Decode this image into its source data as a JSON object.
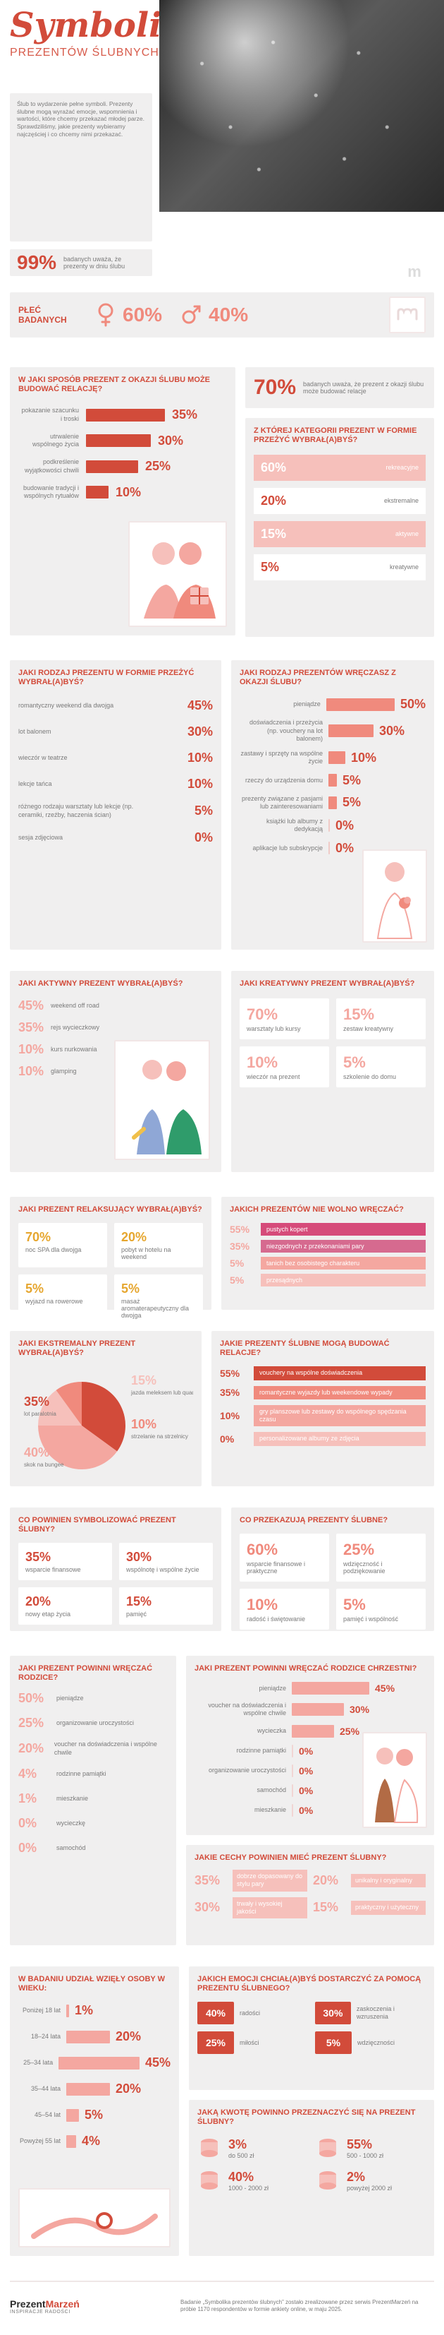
{
  "header": {
    "title_script": "Symbolika",
    "title_caps": "PREZENTÓW ŚLUBNYCH",
    "intro": "Ślub to wydarzenie pełne symboli. Prezenty ślubne mogą wyrażać emocje, wspomnienia i wartości, które chcemy przekazać młodej parze. Sprawdziliśmy, jakie prezenty wybieramy najczęściej i co chcemy nimi przekazać.",
    "stat_pct": "99%",
    "stat_text": "badanych uważa, że prezenty w dniu ślubu",
    "logo_letter": "m"
  },
  "gender": {
    "label": "PŁEĆ BADANYCH",
    "female_pct": "60%",
    "male_pct": "40%"
  },
  "section_relation": {
    "title": "W JAKI SPOSÓB PREZENT Z OKAZJI ŚLUBU MOŻE BUDOWAĆ RELACJĘ?",
    "items": [
      {
        "label": "pokazanie szacunku i troski",
        "pct": "35%"
      },
      {
        "label": "utrwalenie wspólnego życia",
        "pct": "30%"
      },
      {
        "label": "podkreślenie wyjątkowości chwili",
        "pct": "25%"
      },
      {
        "label": "budowanie tradycji i wspólnych rytuałów",
        "pct": "10%"
      }
    ],
    "side_pct": "70%",
    "side_text": "badanych uważa, że prezent z okazji ślubu może budować relacje",
    "category_title": "Z KTÓREJ KATEGORII PREZENT W FORMIE PRZEŻYĆ WYBRAŁ(A)BYŚ?",
    "categories": [
      {
        "pct": "60%",
        "label": "rekreacyjne"
      },
      {
        "pct": "20%",
        "label": "ekstremalne"
      },
      {
        "pct": "15%",
        "label": "aktywne"
      },
      {
        "pct": "5%",
        "label": "kreatywne"
      }
    ]
  },
  "section_experiences": {
    "left_title": "JAKI RODZAJ PREZENTU W FORMIE PRZEŻYĆ WYBRAŁ(A)BYŚ?",
    "left_items": [
      {
        "label": "romantyczny weekend dla dwojga",
        "pct": "45%"
      },
      {
        "label": "lot balonem",
        "pct": "30%"
      },
      {
        "label": "wieczór w teatrze",
        "pct": "10%"
      },
      {
        "label": "lekcje tańca",
        "pct": "10%"
      },
      {
        "label": "różnego rodzaju warsztaty lub lekcje (np. ceramiki, rzeźby, haczenia ścian)",
        "pct": "5%"
      },
      {
        "label": "sesja zdjęciowa",
        "pct": "0%"
      }
    ],
    "right_title": "JAKI RODZAJ PREZENTÓW WRĘCZASZ Z OKAZJI ŚLUBU?",
    "right_items": [
      {
        "label": "pieniądze",
        "pct": "50%"
      },
      {
        "label": "doświadczenia i przeżycia (np. vouchery na lot balonem)",
        "pct": "30%"
      },
      {
        "label": "zastawy i sprzęty na wspólne życie",
        "pct": "10%"
      },
      {
        "label": "rzeczy do urządzenia domu",
        "pct": "5%"
      },
      {
        "label": "prezenty związane z pasjami lub zainteresowaniami",
        "pct": "5%"
      },
      {
        "label": "książki lub albumy z dedykacją",
        "pct": "0%"
      },
      {
        "label": "aplikacje lub subskrypcje",
        "pct": "0%"
      }
    ]
  },
  "section_active_creative": {
    "active_title": "JAKI AKTYWNY PREZENT WYBRAŁ(A)BYŚ?",
    "active_items": [
      {
        "pct": "45%",
        "label": "weekend off road"
      },
      {
        "pct": "35%",
        "label": "rejs wycieczkowy"
      },
      {
        "pct": "10%",
        "label": "kurs nurkowania"
      },
      {
        "pct": "10%",
        "label": "glamping"
      }
    ],
    "creative_title": "JAKI KREATYWNY PREZENT WYBRAŁ(A)BYŚ?",
    "creative_grid": [
      {
        "pct": "70%",
        "label": "warsztaty lub kursy"
      },
      {
        "pct": "15%",
        "label": "zestaw kreatywny"
      },
      {
        "pct": "10%",
        "label": "wieczór na prezent"
      },
      {
        "pct": "5%",
        "label": "szkolenie do domu"
      }
    ]
  },
  "section_relax_cant_give": {
    "relax_title": "JAKI PREZENT RELAKSUJĄCY WYBRAŁ(A)BYŚ?",
    "relax_grid": [
      {
        "pct": "70%",
        "label": "noc SPA dla dwojga"
      },
      {
        "pct": "20%",
        "label": "pobyt w hotelu na weekend"
      },
      {
        "pct": "5%",
        "label": "wyjazd na rowerowe"
      },
      {
        "pct": "5%",
        "label": "masaż aromaterapeutyczny dla dwojga"
      }
    ],
    "cant_title": "JAKICH PREZENTÓW NIE WOLNO WRĘCZAĆ?",
    "cant_items": [
      {
        "pct": "55%",
        "label": "pustych kopert"
      },
      {
        "pct": "35%",
        "label": "niezgodnych z przekonaniami pary"
      },
      {
        "pct": "5%",
        "label": "tanich bez osobistego charakteru"
      },
      {
        "pct": "5%",
        "label": "przesądnych"
      }
    ]
  },
  "section_extreme_build": {
    "extreme_title": "JAKI EKSTREMALNY PREZENT WYBRAŁ(A)BYŚ?",
    "pie": {
      "slices": [
        {
          "name": "lot paralotnia",
          "pct": 35
        },
        {
          "name": "skok na bungee",
          "pct": 40
        },
        {
          "name": "jazda meleksem lub quadem",
          "pct": 15
        },
        {
          "name": "strzelanie na strzelnicy",
          "pct": 10
        }
      ],
      "colors": [
        "#d24b3a",
        "#f4a7a0",
        "#f6c0bb",
        "#f08a7d"
      ]
    },
    "build_title": "JAKIE PREZENTY ŚLUBNE MOGĄ BUDOWAĆ RELACJE?",
    "build_items": [
      {
        "pct": "55%",
        "label": "vouchery na wspólne doświadczenia"
      },
      {
        "pct": "35%",
        "label": "romantyczne wyjazdy lub weekendowe wypady"
      },
      {
        "pct": "10%",
        "label": "gry planszowe lub zestawy do wspólnego spędzania czasu"
      },
      {
        "pct": "0%",
        "label": "personalizowane albumy ze zdjęcia"
      }
    ]
  },
  "section_symbol_express": {
    "symbol_title": "CO POWINIEN SYMBOLIZOWAĆ PREZENT ŚLUBNY?",
    "symbol_grid": [
      {
        "pct": "35%",
        "label": "wsparcie finansowe"
      },
      {
        "pct": "30%",
        "label": "wspólnotę i wspólne życie"
      },
      {
        "pct": "20%",
        "label": "nowy etap życia"
      },
      {
        "pct": "15%",
        "label": "pamięć"
      }
    ],
    "express_title": "CO PRZEKAZUJĄ PREZENTY ŚLUBNE?",
    "express_grid": [
      {
        "pct": "60%",
        "label": "wsparcie finansowe i praktyczne"
      },
      {
        "pct": "25%",
        "label": "wdzięczność i podziękowanie"
      },
      {
        "pct": "10%",
        "label": "radość i świętowanie"
      },
      {
        "pct": "5%",
        "label": "pamięć i wspólność"
      }
    ]
  },
  "section_parents": {
    "left_title": "JAKI PREZENT POWINNI WRĘCZAĆ RODZICE?",
    "left_items": [
      {
        "pct": "50%",
        "label": "pieniądze"
      },
      {
        "pct": "25%",
        "label": "organizowanie uroczystości"
      },
      {
        "pct": "20%",
        "label": "voucher na doświadczenia i wspólne chwile"
      },
      {
        "pct": "4%",
        "label": "rodzinne pamiątki"
      },
      {
        "pct": "1%",
        "label": "mieszkanie"
      },
      {
        "pct": "0%",
        "label": "wycieczkę"
      },
      {
        "pct": "0%",
        "label": "samochód"
      }
    ],
    "right_title": "JAKI PREZENT POWINNI WRĘCZAĆ RODZICE CHRZESTNI?",
    "right_items": [
      {
        "label": "pieniądze",
        "pct": "45%"
      },
      {
        "label": "voucher na doświadczenia i wspólne chwile",
        "pct": "30%"
      },
      {
        "label": "wycieczka",
        "pct": "25%"
      },
      {
        "label": "rodzinne pamiątki",
        "pct": "0%"
      },
      {
        "label": "organizowanie uroczystości",
        "pct": "0%"
      },
      {
        "label": "samochód",
        "pct": "0%"
      },
      {
        "label": "mieszkanie",
        "pct": "0%"
      }
    ],
    "features_title": "JAKIE CECHY POWINIEN MIEĆ PREZENT ŚLUBNY?",
    "features": [
      {
        "pct": "35%",
        "label": "dobrze dopasowany do stylu pary"
      },
      {
        "pct": "20%",
        "label": "unikalny i oryginalny"
      },
      {
        "pct": "30%",
        "label": "trwały i wysokiej jakości"
      },
      {
        "pct": "15%",
        "label": "praktyczny i użyteczny"
      }
    ]
  },
  "section_age_emotions_budget": {
    "age_title": "W BADANIU UDZIAŁ WZIĘŁY OSOBY W WIEKU:",
    "age_items": [
      {
        "label": "Poniżej 18 lat",
        "pct": "1%"
      },
      {
        "label": "18–24 lata",
        "pct": "20%"
      },
      {
        "label": "25–34 lata",
        "pct": "45%"
      },
      {
        "label": "35–44 lata",
        "pct": "20%"
      },
      {
        "label": "45–54 lat",
        "pct": "5%"
      },
      {
        "label": "Powyżej 55 lat",
        "pct": "4%"
      }
    ],
    "emotions_title": "JAKICH EMOCJI CHCIAŁ(A)BYŚ DOSTARCZYĆ ZA POMOCĄ PREZENTU ŚLUBNEGO?",
    "emotions": [
      {
        "pct": "40%",
        "label": "radości"
      },
      {
        "pct": "30%",
        "label": "zaskoczenia i wzruszenia"
      },
      {
        "pct": "25%",
        "label": "miłości"
      },
      {
        "pct": "5%",
        "label": "wdzięczności"
      }
    ],
    "budget_title": "JAKĄ KWOTĘ POWINNO PRZEZNACZYĆ SIĘ NA PREZENT ŚLUBNY?",
    "budget": [
      {
        "pct": "3%",
        "label": "do 500 zł"
      },
      {
        "pct": "55%",
        "label": "500 - 1000 zł"
      },
      {
        "pct": "40%",
        "label": "1000 - 2000 zł"
      },
      {
        "pct": "2%",
        "label": "powyżej 2000 zł"
      }
    ]
  },
  "footer": {
    "brand_left": "Prezent",
    "brand_right": "Marzeń",
    "brand_sub": "INSPIRACJE RADOŚCI",
    "note": "Badanie „Symbolika prezentów ślubnych” zostało zrealizowane przez serwis PrezentMarzeń na próbie 1170 respondentów w formie ankiety online, w maju 2025."
  },
  "colors": {
    "accent": "#d24b3a",
    "pink": "#f4a7a0",
    "pink_light": "#f6c0bb",
    "salmon": "#f08a7d",
    "panel": "#f0efef"
  },
  "icons": {
    "logo": "m-logo-icon",
    "female": "female-symbol-icon",
    "male": "male-symbol-icon"
  }
}
